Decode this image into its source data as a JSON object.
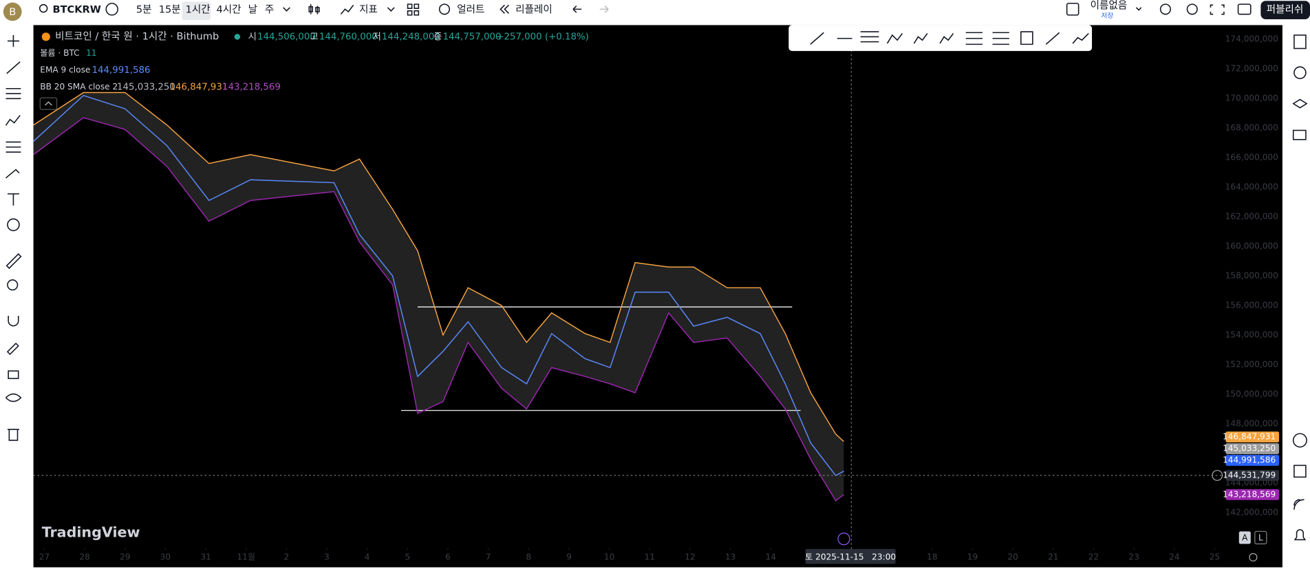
{
  "toolbar": {
    "symbol": "BTCKRW",
    "intervals": [
      "5분",
      "15분",
      "1시간",
      "4시간",
      "날",
      "주"
    ],
    "indicators": "지표",
    "alert": "얼러트",
    "replay": "리플레이",
    "layout_name": "이름없음",
    "save": "저장",
    "publish": "퍼블리쉬"
  },
  "legend": {
    "title": "비트코인 / 한국 원 · 1시간 · Bithumb",
    "open_label": "시",
    "open": "144,506,000",
    "high_label": "고",
    "high": "144,760,000",
    "low_label": "저",
    "low": "144,248,000",
    "close_label": "종",
    "close": "144,757,000",
    "change": "+257,000 (+0.18%)",
    "volume_label": "볼륨 · BTC",
    "volume": "11",
    "ema_label": "EMA 9 close",
    "ema": "144,991,586",
    "bb_label": "BB 20 SMA close 2",
    "bb_basis": "145,033,250",
    "bb_upper": "146,847,931",
    "bb_lower": "143,218,569"
  },
  "price_labels": [
    {
      "text": "146,847,931",
      "color": "#f7a440"
    },
    {
      "text": "145,033,250",
      "color": "#9e9e9e"
    },
    {
      "text": "144,991,586",
      "color": "#2962ff"
    },
    {
      "text": "144,531,799",
      "color": "#2a2e39"
    },
    {
      "text": "143,218,569",
      "color": "#9c27b0"
    }
  ],
  "crosshair_time": "토 2025-11-15   23:00",
  "branding": "TradingView",
  "scale_buttons": [
    "A",
    "L"
  ],
  "chart_data": {
    "type": "line",
    "x": [
      -0.27,
      0.97,
      2.0,
      3.04,
      4.08,
      5.11,
      7.18,
      7.81,
      8.63,
      9.25,
      9.88,
      10.5,
      11.33,
      11.95,
      12.57,
      13.4,
      14.02,
      14.64,
      15.47,
      16.09,
      16.92,
      17.74,
      18.36,
      18.99,
      19.61,
      19.81
    ],
    "xlim": [
      -0.27,
      29.23
    ],
    "xticks": [
      {
        "value": 0,
        "label": "27"
      },
      {
        "value": 1,
        "label": "28"
      },
      {
        "value": 2,
        "label": "29"
      },
      {
        "value": 3,
        "label": "30"
      },
      {
        "value": 4,
        "label": "31"
      },
      {
        "value": 5,
        "label": "11월"
      },
      {
        "value": 6,
        "label": "2"
      },
      {
        "value": 7,
        "label": "3"
      },
      {
        "value": 8,
        "label": "4"
      },
      {
        "value": 9,
        "label": "5"
      },
      {
        "value": 10,
        "label": "6"
      },
      {
        "value": 11,
        "label": "7"
      },
      {
        "value": 12,
        "label": "8"
      },
      {
        "value": 13,
        "label": "9"
      },
      {
        "value": 14,
        "label": "10"
      },
      {
        "value": 15,
        "label": "11"
      },
      {
        "value": 16,
        "label": "12"
      },
      {
        "value": 17,
        "label": "13"
      },
      {
        "value": 18,
        "label": "14"
      },
      {
        "value": 22,
        "label": "18"
      },
      {
        "value": 23,
        "label": "19"
      },
      {
        "value": 24,
        "label": "20"
      },
      {
        "value": 25,
        "label": "21"
      },
      {
        "value": 26,
        "label": "22"
      },
      {
        "value": 27,
        "label": "23"
      },
      {
        "value": 28,
        "label": "24"
      },
      {
        "value": 29,
        "label": "25"
      }
    ],
    "ylim": [
      139650000,
      174960000
    ],
    "yticks": [
      {
        "value": 142000000,
        "label": "142,000,000"
      },
      {
        "value": 144000000,
        "label": "144,000,000"
      },
      {
        "value": 146000000,
        "label": "146,000,000"
      },
      {
        "value": 148000000,
        "label": "148,000,000"
      },
      {
        "value": 150000000,
        "label": "150,000,000"
      },
      {
        "value": 152000000,
        "label": "152,000,000"
      },
      {
        "value": 154000000,
        "label": "154,000,000"
      },
      {
        "value": 156000000,
        "label": "156,000,000"
      },
      {
        "value": 158000000,
        "label": "158,000,000"
      },
      {
        "value": 160000000,
        "label": "160,000,000"
      },
      {
        "value": 162000000,
        "label": "162,000,000"
      },
      {
        "value": 164000000,
        "label": "164,000,000"
      },
      {
        "value": 166000000,
        "label": "166,000,000"
      },
      {
        "value": 168000000,
        "label": "168,000,000"
      },
      {
        "value": 170000000,
        "label": "170,000,000"
      },
      {
        "value": 172000000,
        "label": "172,000,000"
      },
      {
        "value": 174000000,
        "label": "174,000,000"
      }
    ],
    "grid": false,
    "series": [
      {
        "color": "#f7a440",
        "values": [
          168200000,
          170400000,
          170400000,
          168200000,
          165600000,
          166200000,
          165100000,
          165900000,
          162500000,
          159700000,
          154000000,
          157200000,
          156000000,
          153500000,
          155500000,
          154100000,
          153500000,
          158900000,
          158600000,
          158600000,
          157200000,
          157200000,
          154100000,
          150100000,
          147300000,
          146800000
        ]
      },
      {
        "color": "#9c27b0",
        "values": [
          166200000,
          168700000,
          167900000,
          165400000,
          161700000,
          163100000,
          163700000,
          160300000,
          157400000,
          148700000,
          149500000,
          153500000,
          150400000,
          149000000,
          151800000,
          151200000,
          150700000,
          150100000,
          155500000,
          153500000,
          153800000,
          151200000,
          149000000,
          145600000,
          142800000,
          143200000
        ]
      },
      {
        "color": "#5b8cff",
        "values": [
          167100000,
          170200000,
          169300000,
          166800000,
          163100000,
          164500000,
          164300000,
          160800000,
          158000000,
          151200000,
          152900000,
          154900000,
          151800000,
          150700000,
          154100000,
          152400000,
          151800000,
          156900000,
          156900000,
          154600000,
          155200000,
          154100000,
          150700000,
          146700000,
          144500000,
          144800000
        ]
      }
    ],
    "levels": [
      {
        "value": 155900000,
        "x": [
          9.25,
          18.53
        ]
      },
      {
        "value": 148900000,
        "x": [
          8.84,
          18.74
        ]
      }
    ]
  }
}
